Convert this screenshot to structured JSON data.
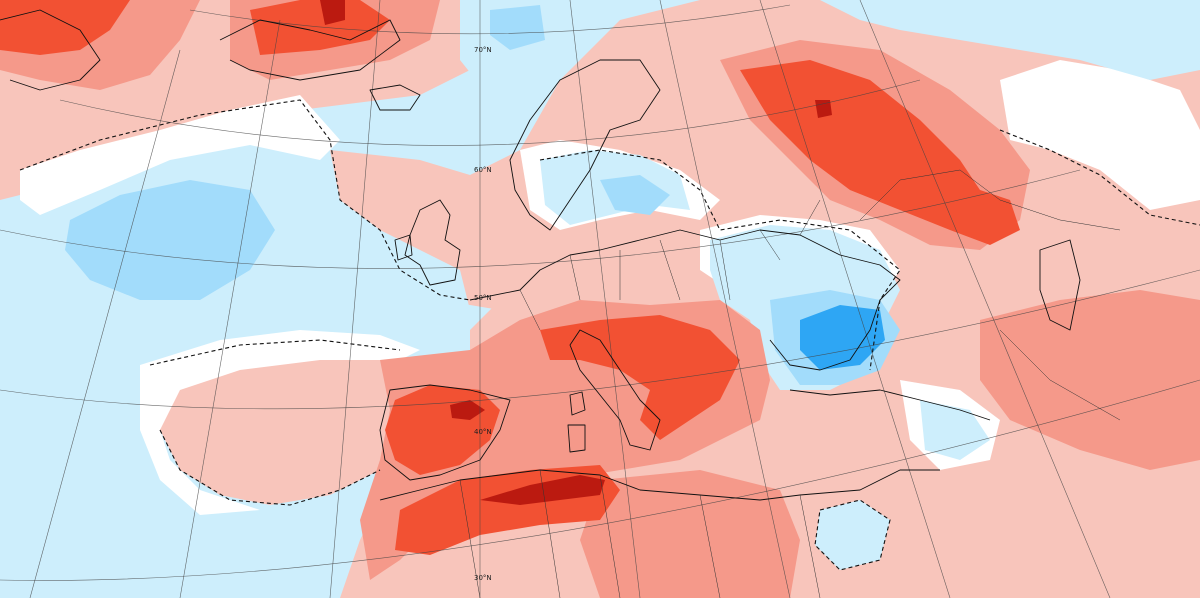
{
  "map": {
    "colors": {
      "ocean_base": "#cdeefc",
      "cold_1": "#cdeefc",
      "cold_2": "#a2dcfb",
      "cold_3": "#2ea6f4",
      "neutral": "#ffffff",
      "warm_1": "#f8c5bb",
      "warm_2": "#f5998a",
      "warm_3": "#f25133",
      "warm_4": "#bb1a10",
      "coastline": "#111111",
      "graticule": "#444444"
    },
    "latitude_labels": [
      {
        "id": "lat-70",
        "text": "70°N"
      },
      {
        "id": "lat-60",
        "text": "60°N"
      },
      {
        "id": "lat-50",
        "text": "50°N"
      },
      {
        "id": "lat-40",
        "text": "40°N"
      },
      {
        "id": "lat-30",
        "text": "30°N"
      }
    ]
  }
}
